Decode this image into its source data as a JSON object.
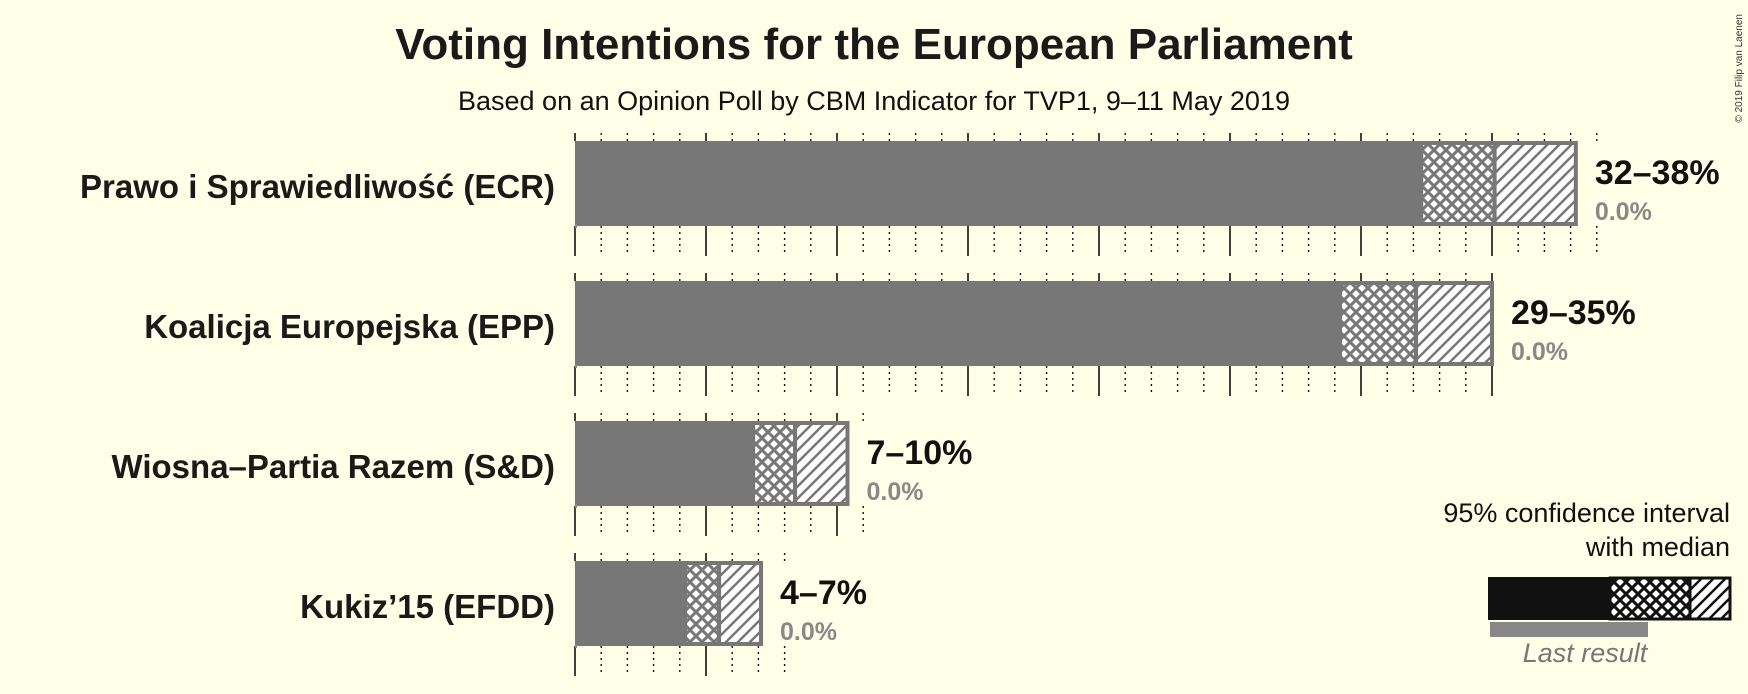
{
  "title": "Voting Intentions for the European Parliament",
  "subtitle": "Based on an Opinion Poll by CBM Indicator for TVP1, 9–11 May 2019",
  "copyright": "© 2019 Filip van Laenen",
  "colors": {
    "background": "#ffffe8",
    "bar": "#777777",
    "legend_bar": "#111111",
    "last_result": "#888888"
  },
  "chart_data": {
    "type": "bar",
    "orientation": "horizontal",
    "categories": [
      "Prawo i Sprawiedliwość (ECR)",
      "Koalicja Europejska (EPP)",
      "Wiosna–Partia Razem (S&D)",
      "Kukiz’15 (EFDD)"
    ],
    "series": [
      {
        "values": [
          32.3,
          29.2,
          6.8,
          4.2
        ]
      },
      {
        "values": [
          35.1,
          32.1,
          8.4,
          5.5
        ]
      },
      {
        "values": [
          38.2,
          35.0,
          10.4,
          7.1
        ]
      }
    ],
    "interval_labels": [
      "32–38%",
      "29–35%",
      "7–10%",
      "4–7%"
    ],
    "last_results": [
      0.0,
      0.0,
      0.0,
      0.0
    ],
    "last_result_labels": [
      "0.0%",
      "0.0%",
      "0.0%",
      "0.0%"
    ],
    "xlim": [
      0,
      40
    ],
    "grid": true,
    "legend": {
      "position": "bottom-right",
      "lines": [
        "95% confidence interval",
        "with median"
      ],
      "last_result": "Last result"
    }
  }
}
